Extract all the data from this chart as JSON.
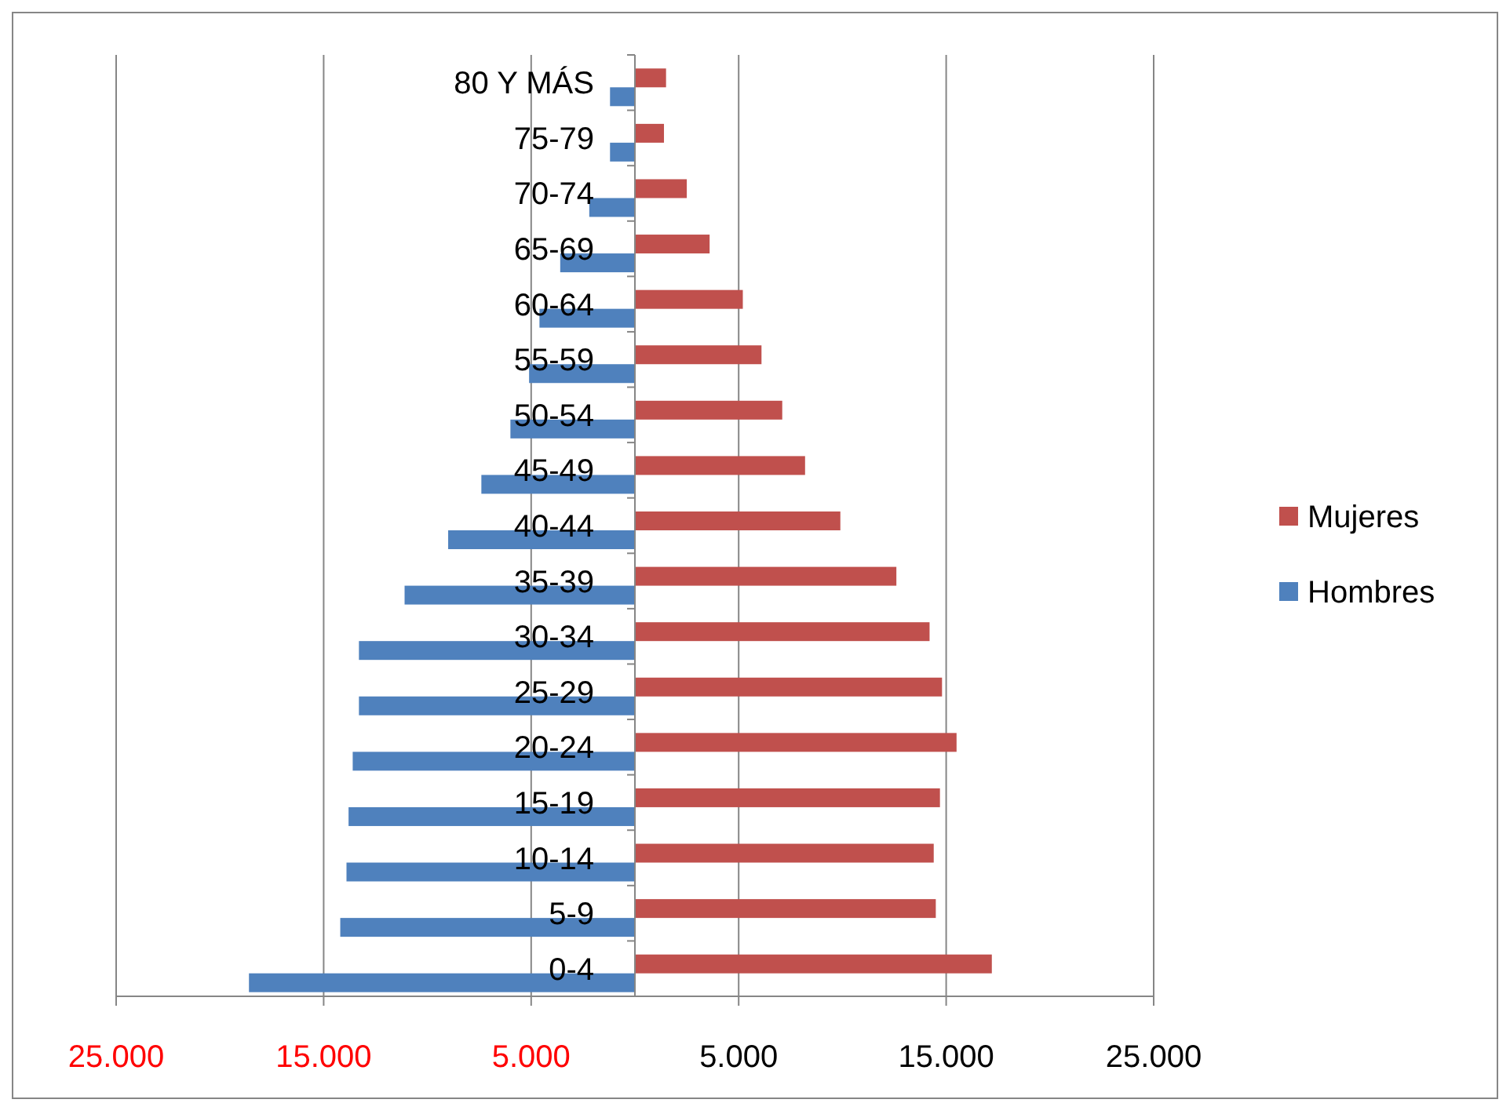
{
  "chart_data": {
    "type": "bar",
    "orientation": "horizontal",
    "categories": [
      "80 Y MÁS",
      "75-79",
      "70-74",
      "65-69",
      "60-64",
      "55-59",
      "50-54",
      "45-49",
      "40-44",
      "35-39",
      "30-34",
      "25-29",
      "20-24",
      "15-19",
      "10-14",
      "5-9",
      "0-4"
    ],
    "series": [
      {
        "name": "Mujeres",
        "color": "#c0504d",
        "values": [
          1500,
          1400,
          2500,
          3600,
          5200,
          6100,
          7100,
          8200,
          9900,
          12600,
          14200,
          14800,
          15500,
          14700,
          14400,
          14500,
          17200
        ]
      },
      {
        "name": "Hombres",
        "color": "#4f81bd",
        "values": [
          -1200,
          -1200,
          -2200,
          -3600,
          -4600,
          -5100,
          -6000,
          -7400,
          -9000,
          -11100,
          -13300,
          -13300,
          -13600,
          -13800,
          -13900,
          -14200,
          -18600
        ]
      }
    ],
    "xlim": [
      -25000,
      25000
    ],
    "xticks": [
      {
        "value": -25000,
        "label": "25.000"
      },
      {
        "value": -15000,
        "label": "15.000"
      },
      {
        "value": -5000,
        "label": "5.000"
      },
      {
        "value": 5000,
        "label": "5.000"
      },
      {
        "value": 15000,
        "label": "15.000"
      },
      {
        "value": 25000,
        "label": "25.000"
      }
    ],
    "grid": "x",
    "legend": "right"
  }
}
